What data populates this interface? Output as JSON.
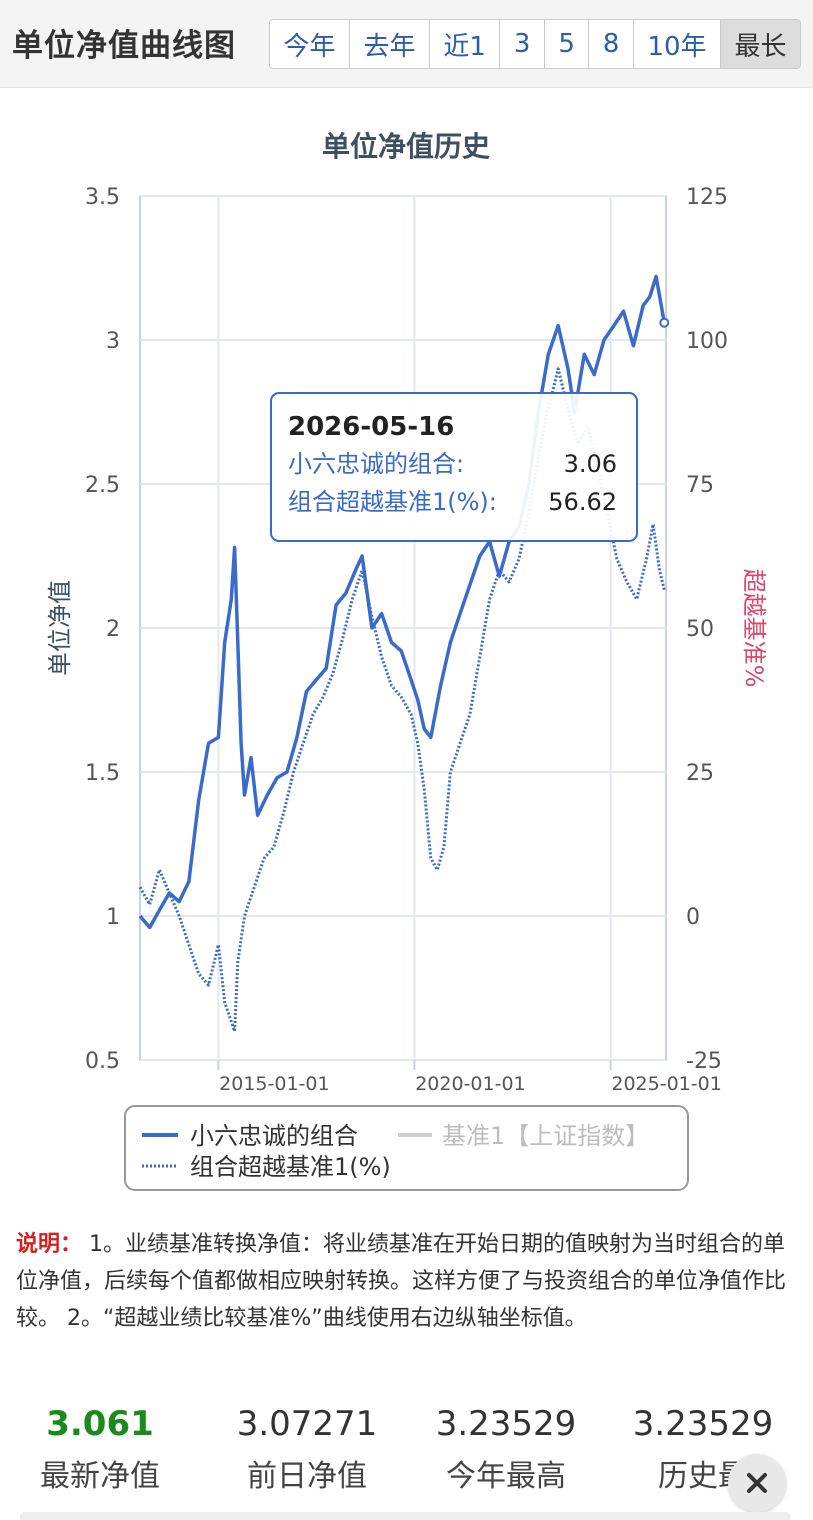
{
  "header": {
    "title": "单位净值曲线图",
    "ranges": [
      "今年",
      "去年",
      "近1",
      "3",
      "5",
      "8",
      "10年",
      "最长"
    ],
    "active_range": "最长"
  },
  "chart_data": {
    "type": "line",
    "title": "单位净值历史",
    "ylabel_left": "单位净值",
    "ylabel_right": "超越基准%",
    "ylim_left": [
      0.5,
      3.5
    ],
    "yticks_left": [
      "0.5",
      "1",
      "1.5",
      "2",
      "2.5",
      "3",
      "3.5"
    ],
    "ylim_right": [
      -25,
      125
    ],
    "yticks_right": [
      "-25",
      "0",
      "25",
      "50",
      "75",
      "100",
      "125"
    ],
    "xlim": [
      "2013-01-01",
      "2026-06-01"
    ],
    "xticks": [
      "2015-01-01",
      "2020-01-01",
      "2025-01-01"
    ],
    "grid": true,
    "series": [
      {
        "name": "小六忠诚的组合",
        "axis": "left",
        "style": "solid",
        "color": "#3a6bc8",
        "points": [
          [
            "2013-01-01",
            1.0
          ],
          [
            "2013-04-01",
            0.96
          ],
          [
            "2013-07-01",
            1.02
          ],
          [
            "2013-10-01",
            1.08
          ],
          [
            "2014-01-01",
            1.05
          ],
          [
            "2014-04-01",
            1.12
          ],
          [
            "2014-07-01",
            1.4
          ],
          [
            "2014-10-01",
            1.6
          ],
          [
            "2015-01-01",
            1.62
          ],
          [
            "2015-03-01",
            1.95
          ],
          [
            "2015-05-01",
            2.1
          ],
          [
            "2015-06-01",
            2.28
          ],
          [
            "2015-07-01",
            1.95
          ],
          [
            "2015-08-01",
            1.6
          ],
          [
            "2015-09-01",
            1.42
          ],
          [
            "2015-11-01",
            1.55
          ],
          [
            "2016-01-01",
            1.35
          ],
          [
            "2016-04-01",
            1.42
          ],
          [
            "2016-07-01",
            1.48
          ],
          [
            "2016-10-01",
            1.5
          ],
          [
            "2017-01-01",
            1.62
          ],
          [
            "2017-04-01",
            1.78
          ],
          [
            "2017-07-01",
            1.82
          ],
          [
            "2017-10-01",
            1.86
          ],
          [
            "2018-01-01",
            2.08
          ],
          [
            "2018-04-01",
            2.12
          ],
          [
            "2018-07-01",
            2.2
          ],
          [
            "2018-09-01",
            2.25
          ],
          [
            "2018-12-01",
            2.0
          ],
          [
            "2019-03-01",
            2.05
          ],
          [
            "2019-06-01",
            1.95
          ],
          [
            "2019-09-01",
            1.92
          ],
          [
            "2019-12-01",
            1.82
          ],
          [
            "2020-02-01",
            1.75
          ],
          [
            "2020-04-01",
            1.65
          ],
          [
            "2020-06-01",
            1.62
          ],
          [
            "2020-09-01",
            1.8
          ],
          [
            "2020-12-01",
            1.95
          ],
          [
            "2021-03-01",
            2.05
          ],
          [
            "2021-06-01",
            2.15
          ],
          [
            "2021-09-01",
            2.25
          ],
          [
            "2021-12-01",
            2.3
          ],
          [
            "2022-03-01",
            2.18
          ],
          [
            "2022-06-01",
            2.3
          ],
          [
            "2022-09-01",
            2.35
          ],
          [
            "2022-12-01",
            2.5
          ],
          [
            "2023-03-01",
            2.75
          ],
          [
            "2023-06-01",
            2.95
          ],
          [
            "2023-09-01",
            3.05
          ],
          [
            "2023-12-01",
            2.9
          ],
          [
            "2024-02-01",
            2.75
          ],
          [
            "2024-05-01",
            2.95
          ],
          [
            "2024-08-01",
            2.88
          ],
          [
            "2024-11-01",
            3.0
          ],
          [
            "2025-02-01",
            3.05
          ],
          [
            "2025-05-01",
            3.1
          ],
          [
            "2025-08-01",
            2.98
          ],
          [
            "2025-11-01",
            3.12
          ],
          [
            "2026-01-01",
            3.15
          ],
          [
            "2026-03-01",
            3.22
          ],
          [
            "2026-05-16",
            3.06
          ]
        ]
      },
      {
        "name": "基准1【上证指数】",
        "axis": "left",
        "style": "solid",
        "color": "#cfcfcf",
        "hidden": true,
        "points": []
      },
      {
        "name": "组合超越基准1(%)",
        "axis": "right",
        "style": "dotted",
        "color": "#3a6bc8",
        "points": [
          [
            "2013-01-01",
            5
          ],
          [
            "2013-04-01",
            2
          ],
          [
            "2013-07-01",
            8
          ],
          [
            "2013-10-01",
            4
          ],
          [
            "2014-01-01",
            0
          ],
          [
            "2014-04-01",
            -5
          ],
          [
            "2014-07-01",
            -10
          ],
          [
            "2014-10-01",
            -12
          ],
          [
            "2015-01-01",
            -5
          ],
          [
            "2015-03-01",
            -15
          ],
          [
            "2015-06-01",
            -20
          ],
          [
            "2015-07-01",
            -8
          ],
          [
            "2015-09-01",
            0
          ],
          [
            "2015-12-01",
            5
          ],
          [
            "2016-03-01",
            10
          ],
          [
            "2016-06-01",
            12
          ],
          [
            "2016-09-01",
            18
          ],
          [
            "2016-12-01",
            25
          ],
          [
            "2017-03-01",
            30
          ],
          [
            "2017-06-01",
            35
          ],
          [
            "2017-09-01",
            38
          ],
          [
            "2017-12-01",
            42
          ],
          [
            "2018-03-01",
            48
          ],
          [
            "2018-06-01",
            55
          ],
          [
            "2018-09-01",
            60
          ],
          [
            "2018-12-01",
            52
          ],
          [
            "2019-03-01",
            45
          ],
          [
            "2019-06-01",
            40
          ],
          [
            "2019-09-01",
            38
          ],
          [
            "2019-12-01",
            35
          ],
          [
            "2020-02-01",
            30
          ],
          [
            "2020-04-01",
            22
          ],
          [
            "2020-06-01",
            10
          ],
          [
            "2020-08-01",
            8
          ],
          [
            "2020-10-01",
            12
          ],
          [
            "2020-12-01",
            25
          ],
          [
            "2021-03-01",
            30
          ],
          [
            "2021-06-01",
            35
          ],
          [
            "2021-09-01",
            45
          ],
          [
            "2021-12-01",
            55
          ],
          [
            "2022-03-01",
            60
          ],
          [
            "2022-06-01",
            58
          ],
          [
            "2022-09-01",
            62
          ],
          [
            "2022-12-01",
            70
          ],
          [
            "2023-03-01",
            80
          ],
          [
            "2023-06-01",
            88
          ],
          [
            "2023-09-01",
            95
          ],
          [
            "2023-12-01",
            88
          ],
          [
            "2024-03-01",
            82
          ],
          [
            "2024-06-01",
            85
          ],
          [
            "2024-09-01",
            78
          ],
          [
            "2024-12-01",
            70
          ],
          [
            "2025-03-01",
            62
          ],
          [
            "2025-06-01",
            58
          ],
          [
            "2025-09-01",
            55
          ],
          [
            "2025-12-01",
            62
          ],
          [
            "2026-02-01",
            68
          ],
          [
            "2026-04-01",
            60
          ],
          [
            "2026-05-16",
            56.62
          ]
        ]
      }
    ],
    "tooltip": {
      "date": "2026-05-16",
      "rows": [
        {
          "label": "小六忠诚的组合:",
          "value": "3.06"
        },
        {
          "label": "组合超越基准1(%):",
          "value": "56.62"
        }
      ]
    },
    "legend": {
      "placement": "bottom",
      "items": [
        {
          "name": "小六忠诚的组合",
          "style": "solid",
          "color": "#3a6bc8"
        },
        {
          "name": "基准1【上证指数】",
          "style": "solid",
          "color": "#cfcfcf",
          "hidden": true
        },
        {
          "name": "组合超越基准1(%)",
          "style": "dotted",
          "color": "#3a6bc8"
        }
      ]
    }
  },
  "notes": {
    "label": "说明：",
    "text": " 1。业绩基准转换净值：将业绩基准在开始日期的值映射为当时组合的单位净值，后续每个值都做相应映射转换。这样方便了与投资组合的单位净值作比较。 2。“超越业绩比较基准%”曲线使用右边纵轴坐标值。"
  },
  "stats": [
    {
      "value": "3.061",
      "label": "最新净值",
      "highlight": true
    },
    {
      "value": "3.07271",
      "label": "前日净值"
    },
    {
      "value": "3.23529",
      "label": "今年最高"
    },
    {
      "value": "3.23529",
      "label": "历史最"
    }
  ],
  "colors": {
    "line_primary": "#3a6bc8",
    "benchmark_hidden": "#cfcfcf",
    "title": "#3f4f63",
    "right_axis_label": "#d9486a",
    "latest_value": "#1a8a1a"
  }
}
